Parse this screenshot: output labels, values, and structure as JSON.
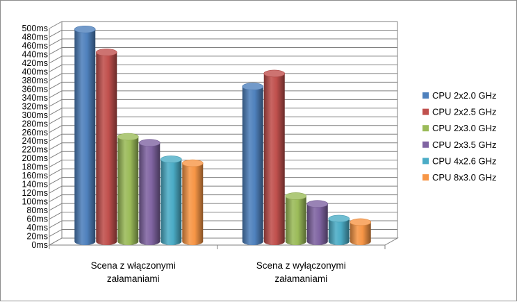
{
  "chart_data": {
    "type": "bar",
    "style": "3d-cylinder",
    "categories": [
      [
        "Scena z włączonymi",
        "załamaniami"
      ],
      [
        "Scena z wyłączonymi",
        "załamaniami"
      ]
    ],
    "series": [
      {
        "name": "CPU 2x2.0 GHz",
        "color": "#4f81bd",
        "values": [
          490,
          358
        ]
      },
      {
        "name": "CPU 2x2.5 GHz",
        "color": "#c0504d",
        "values": [
          437,
          388
        ]
      },
      {
        "name": "CPU 2x3.0 GHz",
        "color": "#9bbb59",
        "values": [
          242,
          105
        ]
      },
      {
        "name": "CPU 2x3.5 GHz",
        "color": "#8064a2",
        "values": [
          228,
          87
        ]
      },
      {
        "name": "CPU 4x2.6 GHz",
        "color": "#4bacc6",
        "values": [
          190,
          53
        ]
      },
      {
        "name": "CPU 8x3.0 GHz",
        "color": "#f79646",
        "values": [
          181,
          45
        ]
      }
    ],
    "y_ticks": [
      "0ms",
      "20ms",
      "40ms",
      "60ms",
      "80ms",
      "100ms",
      "120ms",
      "140ms",
      "160ms",
      "180ms",
      "200ms",
      "220ms",
      "240ms",
      "260ms",
      "280ms",
      "300ms",
      "320ms",
      "340ms",
      "360ms",
      "380ms",
      "400ms",
      "420ms",
      "440ms",
      "460ms",
      "480ms",
      "500ms"
    ],
    "ylim": [
      0,
      500
    ],
    "title": "",
    "xlabel": "",
    "ylabel": "",
    "grid": true,
    "legend": "right"
  }
}
